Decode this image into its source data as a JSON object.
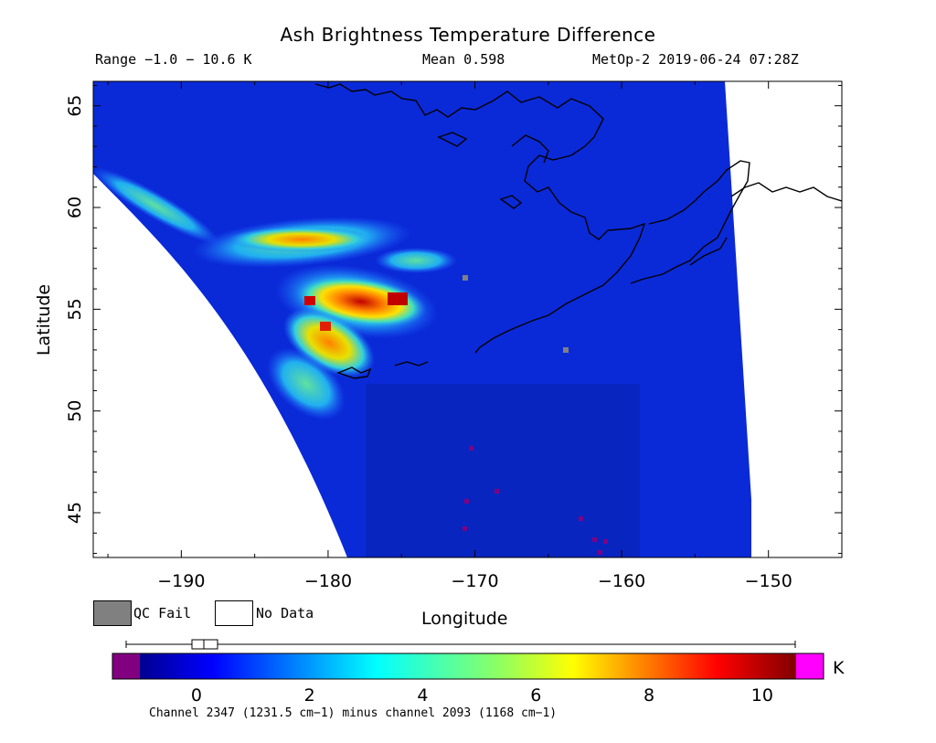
{
  "header": {
    "title": "Ash Brightness Temperature Difference",
    "range": "Range −1.0 − 10.6 K",
    "mean": "Mean 0.598",
    "satellite_time": "MetOp-2 2019-06-24 07:28Z"
  },
  "axes": {
    "xlabel": "Longitude",
    "ylabel": "Latitude",
    "x_ticks": [
      "−190",
      "−180",
      "−170",
      "−160",
      "−150"
    ],
    "y_ticks": [
      "45",
      "50",
      "55",
      "60",
      "65"
    ],
    "xlim": [
      -196,
      -145
    ],
    "ylim": [
      42.8,
      66.2
    ]
  },
  "legend": {
    "qc_fail": "QC Fail",
    "no_data": "No Data",
    "qc_color": "#808080",
    "no_data_color": "#ffffff"
  },
  "colorbar": {
    "unit": "K",
    "ticks": [
      "0",
      "2",
      "4",
      "6",
      "8",
      "10"
    ],
    "range": [
      -1.0,
      10.6
    ],
    "under_color": "#800080",
    "over_color": "#ff00ff",
    "box_median": 0.5
  },
  "footnote": "Channel 2347 (1231.5 cm−1) minus channel 2093 (1168 cm−1)",
  "colors": {
    "background_field": "#0a2ad8",
    "ash_high": "#c00000",
    "coastline": "#000000"
  }
}
